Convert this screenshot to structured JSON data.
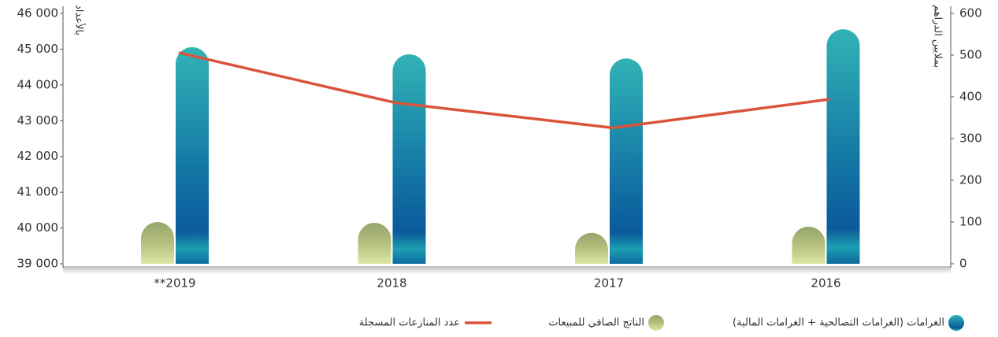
{
  "chart_data": {
    "type": "bar-line",
    "categories": [
      "**2019",
      "2018",
      "2017",
      "2016"
    ],
    "ylabel": "بالأعداد",
    "y2label": "بملايين الدراهم",
    "ylim": [
      39000,
      46000
    ],
    "yticks": [
      {
        "value": 39000,
        "label": "39 000"
      },
      {
        "value": 40000,
        "label": "40 000"
      },
      {
        "value": 41000,
        "label": "41 000"
      },
      {
        "value": 42000,
        "label": "42 000"
      },
      {
        "value": 43000,
        "label": "43 000"
      },
      {
        "value": 44000,
        "label": "44 000"
      },
      {
        "value": 45000,
        "label": "45 000"
      },
      {
        "value": 46000,
        "label": "46 000"
      }
    ],
    "y2lim": [
      0,
      600
    ],
    "y2ticks": [
      0,
      100,
      200,
      300,
      400,
      500,
      600
    ],
    "series": [
      {
        "name": "الغرامات (الغرامات التصالحية + الغرامات المالية)",
        "type": "bar",
        "axis": "y2",
        "color": "#1478a6",
        "values": [
          519,
          502,
          492,
          562
        ]
      },
      {
        "name": "الناتج الصافي للمبيعات",
        "type": "bar",
        "axis": "y2",
        "color": "#b4c07e",
        "values": [
          100,
          98,
          74,
          89
        ]
      },
      {
        "name": "عدد المنازعات المسجلة",
        "type": "line",
        "axis": "y",
        "color": "#d9543a",
        "values": [
          44900,
          43500,
          42800,
          43600
        ]
      }
    ]
  }
}
